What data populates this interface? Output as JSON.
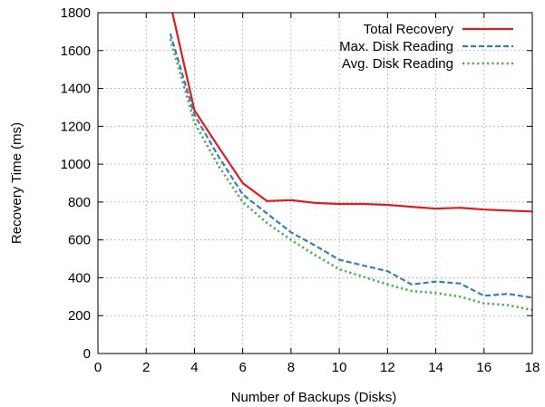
{
  "chart_data": {
    "type": "line",
    "title": "",
    "xlabel": "Number of Backups (Disks)",
    "ylabel": "Recovery Time (ms)",
    "xlim": [
      0,
      18
    ],
    "ylim": [
      0,
      1800
    ],
    "xticks": [
      0,
      2,
      4,
      6,
      8,
      10,
      12,
      14,
      16,
      18
    ],
    "yticks": [
      0,
      200,
      400,
      600,
      800,
      1000,
      1200,
      1400,
      1600,
      1800
    ],
    "grid": true,
    "legend_position": "top-right",
    "series": [
      {
        "name": "Total Recovery",
        "color": "#e41a1c",
        "style": "solid",
        "x": [
          3,
          4,
          5,
          6,
          7,
          8,
          9,
          10,
          11,
          12,
          13,
          14,
          15,
          16,
          17,
          18
        ],
        "y": [
          1850,
          1285,
          1090,
          900,
          805,
          810,
          795,
          790,
          790,
          785,
          775,
          765,
          770,
          760,
          755,
          750
        ]
      },
      {
        "name": "Max. Disk Reading",
        "color": "#377eb8",
        "style": "dashed",
        "x": [
          3,
          4,
          5,
          6,
          7,
          8,
          9,
          10,
          11,
          12,
          13,
          14,
          15,
          16,
          17,
          18
        ],
        "y": [
          1690,
          1260,
          1040,
          840,
          740,
          640,
          570,
          495,
          465,
          435,
          365,
          380,
          370,
          305,
          315,
          295
        ]
      },
      {
        "name": "Avg. Disk Reading",
        "color": "#4daf4a",
        "style": "dotted",
        "x": [
          3,
          4,
          5,
          6,
          7,
          8,
          9,
          10,
          11,
          12,
          13,
          14,
          15,
          16,
          17,
          18
        ],
        "y": [
          1660,
          1220,
          990,
          800,
          690,
          600,
          520,
          445,
          405,
          365,
          330,
          320,
          300,
          265,
          255,
          230
        ]
      }
    ]
  }
}
